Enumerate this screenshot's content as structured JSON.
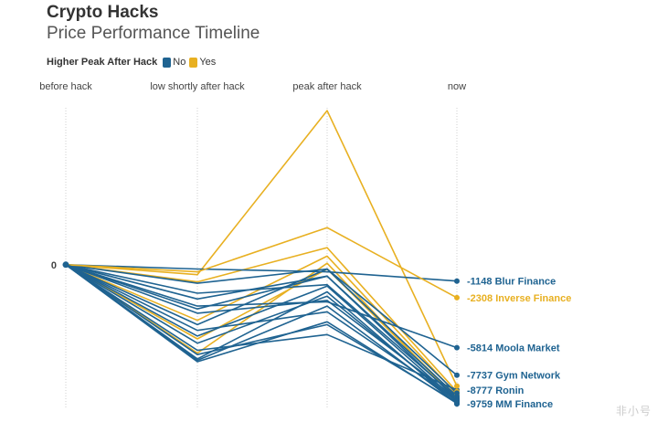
{
  "header": {
    "title": "Crypto Hacks",
    "subtitle": "Price Performance Timeline"
  },
  "legend": {
    "label": "Higher Peak After Hack",
    "items": [
      {
        "label": "No",
        "color": "#1f6391"
      },
      {
        "label": "Yes",
        "color": "#e8b021"
      }
    ]
  },
  "watermark": "非小号",
  "chart_data": {
    "type": "line",
    "title": "Crypto Hacks",
    "subtitle": "Price Performance Timeline",
    "categories": [
      "before hack",
      "low shortly after hack",
      "peak after hack",
      "now"
    ],
    "y_tick_labels": [
      "0"
    ],
    "ylim": [
      -10000,
      11000
    ],
    "colors": {
      "No": "#1f6391",
      "Yes": "#e8b021"
    },
    "series": [
      {
        "name": "Blur Finance",
        "group": "No",
        "label": true,
        "values": [
          0,
          -300,
          -500,
          -1148
        ]
      },
      {
        "name": "Inverse Finance",
        "group": "Yes",
        "label": true,
        "values": [
          0,
          -500,
          2600,
          -2308
        ]
      },
      {
        "name": "Moola Market",
        "group": "No",
        "label": true,
        "values": [
          0,
          -2900,
          -2600,
          -5814
        ]
      },
      {
        "name": "Gym Network",
        "group": "No",
        "label": true,
        "values": [
          0,
          -4200,
          -300,
          -7737
        ]
      },
      {
        "name": "Ronin",
        "group": "No",
        "label": true,
        "values": [
          0,
          -6000,
          -4900,
          -8777
        ]
      },
      {
        "name": "MM Finance",
        "group": "No",
        "label": true,
        "values": [
          0,
          -6600,
          -1900,
          -9759
        ]
      },
      {
        "name": "",
        "group": "Yes",
        "label": false,
        "values": [
          0,
          -700,
          10800,
          -8500
        ]
      },
      {
        "name": "",
        "group": "Yes",
        "label": false,
        "values": [
          0,
          -1200,
          1200,
          -8900
        ]
      },
      {
        "name": "",
        "group": "Yes",
        "label": false,
        "values": [
          0,
          -3900,
          600,
          -9100
        ]
      },
      {
        "name": "",
        "group": "Yes",
        "label": false,
        "values": [
          0,
          -5200,
          -300,
          -9300
        ]
      },
      {
        "name": "",
        "group": "Yes",
        "label": false,
        "values": [
          0,
          -6200,
          100,
          -9500
        ]
      },
      {
        "name": "",
        "group": "No",
        "label": false,
        "values": [
          0,
          -1300,
          -300,
          -9000
        ]
      },
      {
        "name": "",
        "group": "No",
        "label": false,
        "values": [
          0,
          -2400,
          -800,
          -9200
        ]
      },
      {
        "name": "",
        "group": "No",
        "label": false,
        "values": [
          0,
          -2000,
          -1400,
          -9300
        ]
      },
      {
        "name": "",
        "group": "No",
        "label": false,
        "values": [
          0,
          -3400,
          -2500,
          -9400
        ]
      },
      {
        "name": "",
        "group": "No",
        "label": false,
        "values": [
          0,
          -3100,
          -800,
          -9450
        ]
      },
      {
        "name": "",
        "group": "No",
        "label": false,
        "values": [
          0,
          -4600,
          -3300,
          -9500
        ]
      },
      {
        "name": "",
        "group": "No",
        "label": false,
        "values": [
          0,
          -5000,
          -1500,
          -9550
        ]
      },
      {
        "name": "",
        "group": "No",
        "label": false,
        "values": [
          0,
          -5500,
          -2200,
          -9600
        ]
      },
      {
        "name": "",
        "group": "No",
        "label": false,
        "values": [
          0,
          -6300,
          -4200,
          -9650
        ]
      },
      {
        "name": "",
        "group": "No",
        "label": false,
        "values": [
          0,
          -6700,
          -2900,
          -9700
        ]
      },
      {
        "name": "",
        "group": "No",
        "label": false,
        "values": [
          0,
          -6800,
          -4000,
          -9720
        ]
      }
    ]
  }
}
